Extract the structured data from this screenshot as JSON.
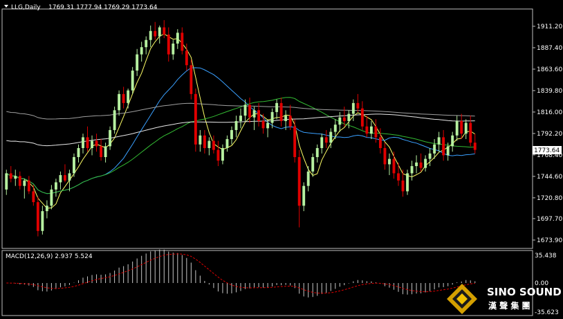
{
  "chart_data": {
    "type": "candlestick",
    "symbol_header": "LLG,Daily",
    "ohlc_header": "1769.31 1777.94 1769.29 1773.64",
    "current_price_label": "1773.64",
    "ylim": [
      1670,
      1925
    ],
    "y_ticks": [
      "1911.20",
      "1887.40",
      "1863.60",
      "1839.80",
      "1816.00",
      "1792.20",
      "1768.40",
      "1744.60",
      "1720.80",
      "1697.70",
      "1673.90"
    ],
    "colors": {
      "bull": "#b6f0a0",
      "bear": "#e00000",
      "background": "#000000"
    },
    "moving_averages": [
      {
        "color": "#ffff66",
        "period": 5
      },
      {
        "color": "#3aa0ff",
        "period": 20
      },
      {
        "color": "#33bb33",
        "period": 40
      },
      {
        "color": "#e8e8e8",
        "period": 60
      },
      {
        "color": "#a0a0a0",
        "period": 120
      }
    ],
    "ma_seed": {
      "ma60": [
        1800,
        1798,
        1796,
        1794,
        1792,
        1790,
        1789,
        1788,
        1787,
        1786,
        1786,
        1785,
        1785,
        1785,
        1785,
        1785,
        1786,
        1786,
        1787,
        1788,
        1789,
        1790,
        1791,
        1792,
        1793,
        1794,
        1795,
        1796,
        1797,
        1798,
        1799,
        1800,
        1801,
        1802,
        1803,
        1804,
        1805,
        1806,
        1807,
        1808,
        1809,
        1810,
        1811,
        1812,
        1813,
        1814,
        1815,
        1816,
        1817,
        1818,
        1819,
        1820,
        1821,
        1822,
        1823,
        1824,
        1825
      ],
      "ma120": [
        1825,
        1824,
        1823,
        1822,
        1821,
        1820,
        1819,
        1818,
        1817,
        1816,
        1815,
        1814,
        1813,
        1812,
        1811,
        1810,
        1809,
        1808,
        1807,
        1806,
        1805,
        1804,
        1803,
        1802,
        1801,
        1800,
        1799,
        1798,
        1797,
        1796,
        1795,
        1794,
        1793,
        1792,
        1791,
        1790,
        1789,
        1788,
        1787,
        1786,
        1785,
        1784,
        1783,
        1782,
        1781,
        1780,
        1779,
        1778,
        1777,
        1776,
        1775,
        1774,
        1773,
        1772,
        1771,
        1770,
        1769,
        1768,
        1767,
        1766,
        1765,
        1764,
        1763,
        1762,
        1761,
        1760,
        1759,
        1758,
        1757,
        1756,
        1755,
        1754,
        1753,
        1752,
        1751,
        1750,
        1749,
        1748,
        1747,
        1746,
        1745,
        1744,
        1743,
        1742,
        1741,
        1740,
        1739,
        1738,
        1737,
        1736,
        1735,
        1734,
        1733,
        1732,
        1731,
        1730,
        1729,
        1728,
        1727,
        1726,
        1725,
        1724,
        1723,
        1722,
        1721,
        1720,
        1719,
        1718,
        1717,
        1716,
        1715,
        1714,
        1713,
        1712,
        1711,
        1710,
        1709,
        1708,
        1707,
        1706
      ]
    },
    "ohlc": [
      [
        1730,
        1752,
        1724,
        1748
      ],
      [
        1748,
        1756,
        1738,
        1742
      ],
      [
        1742,
        1752,
        1734,
        1745
      ],
      [
        1745,
        1750,
        1730,
        1734
      ],
      [
        1734,
        1742,
        1720,
        1740
      ],
      [
        1740,
        1745,
        1725,
        1728
      ],
      [
        1728,
        1735,
        1712,
        1716
      ],
      [
        1716,
        1722,
        1678,
        1684
      ],
      [
        1684,
        1712,
        1680,
        1706
      ],
      [
        1706,
        1718,
        1698,
        1712
      ],
      [
        1712,
        1735,
        1708,
        1730
      ],
      [
        1730,
        1742,
        1722,
        1738
      ],
      [
        1738,
        1750,
        1730,
        1746
      ],
      [
        1746,
        1758,
        1738,
        1740
      ],
      [
        1740,
        1752,
        1728,
        1748
      ],
      [
        1748,
        1770,
        1744,
        1766
      ],
      [
        1766,
        1780,
        1760,
        1776
      ],
      [
        1776,
        1792,
        1770,
        1788
      ],
      [
        1788,
        1800,
        1772,
        1776
      ],
      [
        1776,
        1790,
        1768,
        1784
      ],
      [
        1784,
        1792,
        1772,
        1778
      ],
      [
        1778,
        1786,
        1762,
        1766
      ],
      [
        1766,
        1782,
        1760,
        1778
      ],
      [
        1778,
        1800,
        1774,
        1796
      ],
      [
        1796,
        1822,
        1792,
        1818
      ],
      [
        1818,
        1840,
        1812,
        1836
      ],
      [
        1836,
        1844,
        1820,
        1826
      ],
      [
        1826,
        1842,
        1820,
        1840
      ],
      [
        1840,
        1866,
        1836,
        1862
      ],
      [
        1862,
        1886,
        1856,
        1880
      ],
      [
        1880,
        1894,
        1872,
        1888
      ],
      [
        1888,
        1900,
        1880,
        1896
      ],
      [
        1896,
        1912,
        1888,
        1906
      ],
      [
        1906,
        1916,
        1896,
        1900
      ],
      [
        1900,
        1912,
        1892,
        1910
      ],
      [
        1910,
        1918,
        1898,
        1902
      ],
      [
        1902,
        1910,
        1872,
        1880
      ],
      [
        1880,
        1896,
        1874,
        1892
      ],
      [
        1892,
        1908,
        1886,
        1904
      ],
      [
        1904,
        1910,
        1880,
        1884
      ],
      [
        1884,
        1892,
        1862,
        1868
      ],
      [
        1868,
        1874,
        1830,
        1836
      ],
      [
        1836,
        1842,
        1772,
        1780
      ],
      [
        1780,
        1796,
        1772,
        1790
      ],
      [
        1790,
        1796,
        1770,
        1776
      ],
      [
        1776,
        1788,
        1768,
        1784
      ],
      [
        1784,
        1790,
        1770,
        1774
      ],
      [
        1774,
        1784,
        1756,
        1762
      ],
      [
        1762,
        1780,
        1758,
        1776
      ],
      [
        1776,
        1790,
        1772,
        1786
      ],
      [
        1786,
        1800,
        1780,
        1796
      ],
      [
        1796,
        1812,
        1788,
        1806
      ],
      [
        1806,
        1820,
        1798,
        1812
      ],
      [
        1812,
        1830,
        1806,
        1824
      ],
      [
        1824,
        1832,
        1804,
        1810
      ],
      [
        1810,
        1822,
        1796,
        1818
      ],
      [
        1818,
        1826,
        1800,
        1806
      ],
      [
        1806,
        1814,
        1792,
        1798
      ],
      [
        1798,
        1808,
        1788,
        1804
      ],
      [
        1804,
        1820,
        1798,
        1816
      ],
      [
        1816,
        1830,
        1808,
        1826
      ],
      [
        1826,
        1832,
        1800,
        1806
      ],
      [
        1806,
        1818,
        1796,
        1812
      ],
      [
        1812,
        1824,
        1796,
        1800
      ],
      [
        1800,
        1808,
        1760,
        1766
      ],
      [
        1766,
        1774,
        1688,
        1712
      ],
      [
        1712,
        1738,
        1706,
        1734
      ],
      [
        1734,
        1756,
        1728,
        1750
      ],
      [
        1750,
        1770,
        1744,
        1766
      ],
      [
        1766,
        1780,
        1760,
        1776
      ],
      [
        1776,
        1792,
        1770,
        1788
      ],
      [
        1788,
        1796,
        1776,
        1782
      ],
      [
        1782,
        1798,
        1776,
        1794
      ],
      [
        1794,
        1808,
        1786,
        1802
      ],
      [
        1802,
        1816,
        1794,
        1810
      ],
      [
        1810,
        1822,
        1800,
        1806
      ],
      [
        1806,
        1818,
        1798,
        1814
      ],
      [
        1814,
        1830,
        1806,
        1826
      ],
      [
        1826,
        1836,
        1816,
        1820
      ],
      [
        1820,
        1828,
        1796,
        1800
      ],
      [
        1800,
        1812,
        1788,
        1792
      ],
      [
        1792,
        1806,
        1786,
        1800
      ],
      [
        1800,
        1808,
        1782,
        1788
      ],
      [
        1788,
        1798,
        1770,
        1776
      ],
      [
        1776,
        1782,
        1752,
        1758
      ],
      [
        1758,
        1770,
        1746,
        1764
      ],
      [
        1764,
        1772,
        1742,
        1748
      ],
      [
        1748,
        1760,
        1734,
        1740
      ],
      [
        1740,
        1752,
        1722,
        1728
      ],
      [
        1728,
        1752,
        1724,
        1748
      ],
      [
        1748,
        1762,
        1740,
        1756
      ],
      [
        1756,
        1768,
        1748,
        1760
      ],
      [
        1760,
        1770,
        1750,
        1754
      ],
      [
        1754,
        1768,
        1750,
        1764
      ],
      [
        1764,
        1776,
        1756,
        1770
      ],
      [
        1770,
        1786,
        1764,
        1780
      ],
      [
        1780,
        1794,
        1772,
        1788
      ],
      [
        1788,
        1796,
        1762,
        1768
      ],
      [
        1768,
        1782,
        1762,
        1778
      ],
      [
        1778,
        1794,
        1772,
        1790
      ],
      [
        1790,
        1812,
        1784,
        1806
      ],
      [
        1806,
        1814,
        1786,
        1792
      ],
      [
        1792,
        1808,
        1786,
        1804
      ],
      [
        1804,
        1812,
        1778,
        1782
      ],
      [
        1782,
        1792,
        1770,
        1774
      ]
    ]
  },
  "macd": {
    "label": "MACD(12,26,9) 2.937 5.524",
    "y_ticks": [
      "35.438",
      "0.00",
      "-35.623"
    ],
    "ylim": [
      -36,
      36
    ],
    "bar_color": "#c8c8c8",
    "signal_color": "#e00000"
  },
  "logo": {
    "main": "SINO SOUND",
    "sub": "漢 聲 集 團"
  }
}
